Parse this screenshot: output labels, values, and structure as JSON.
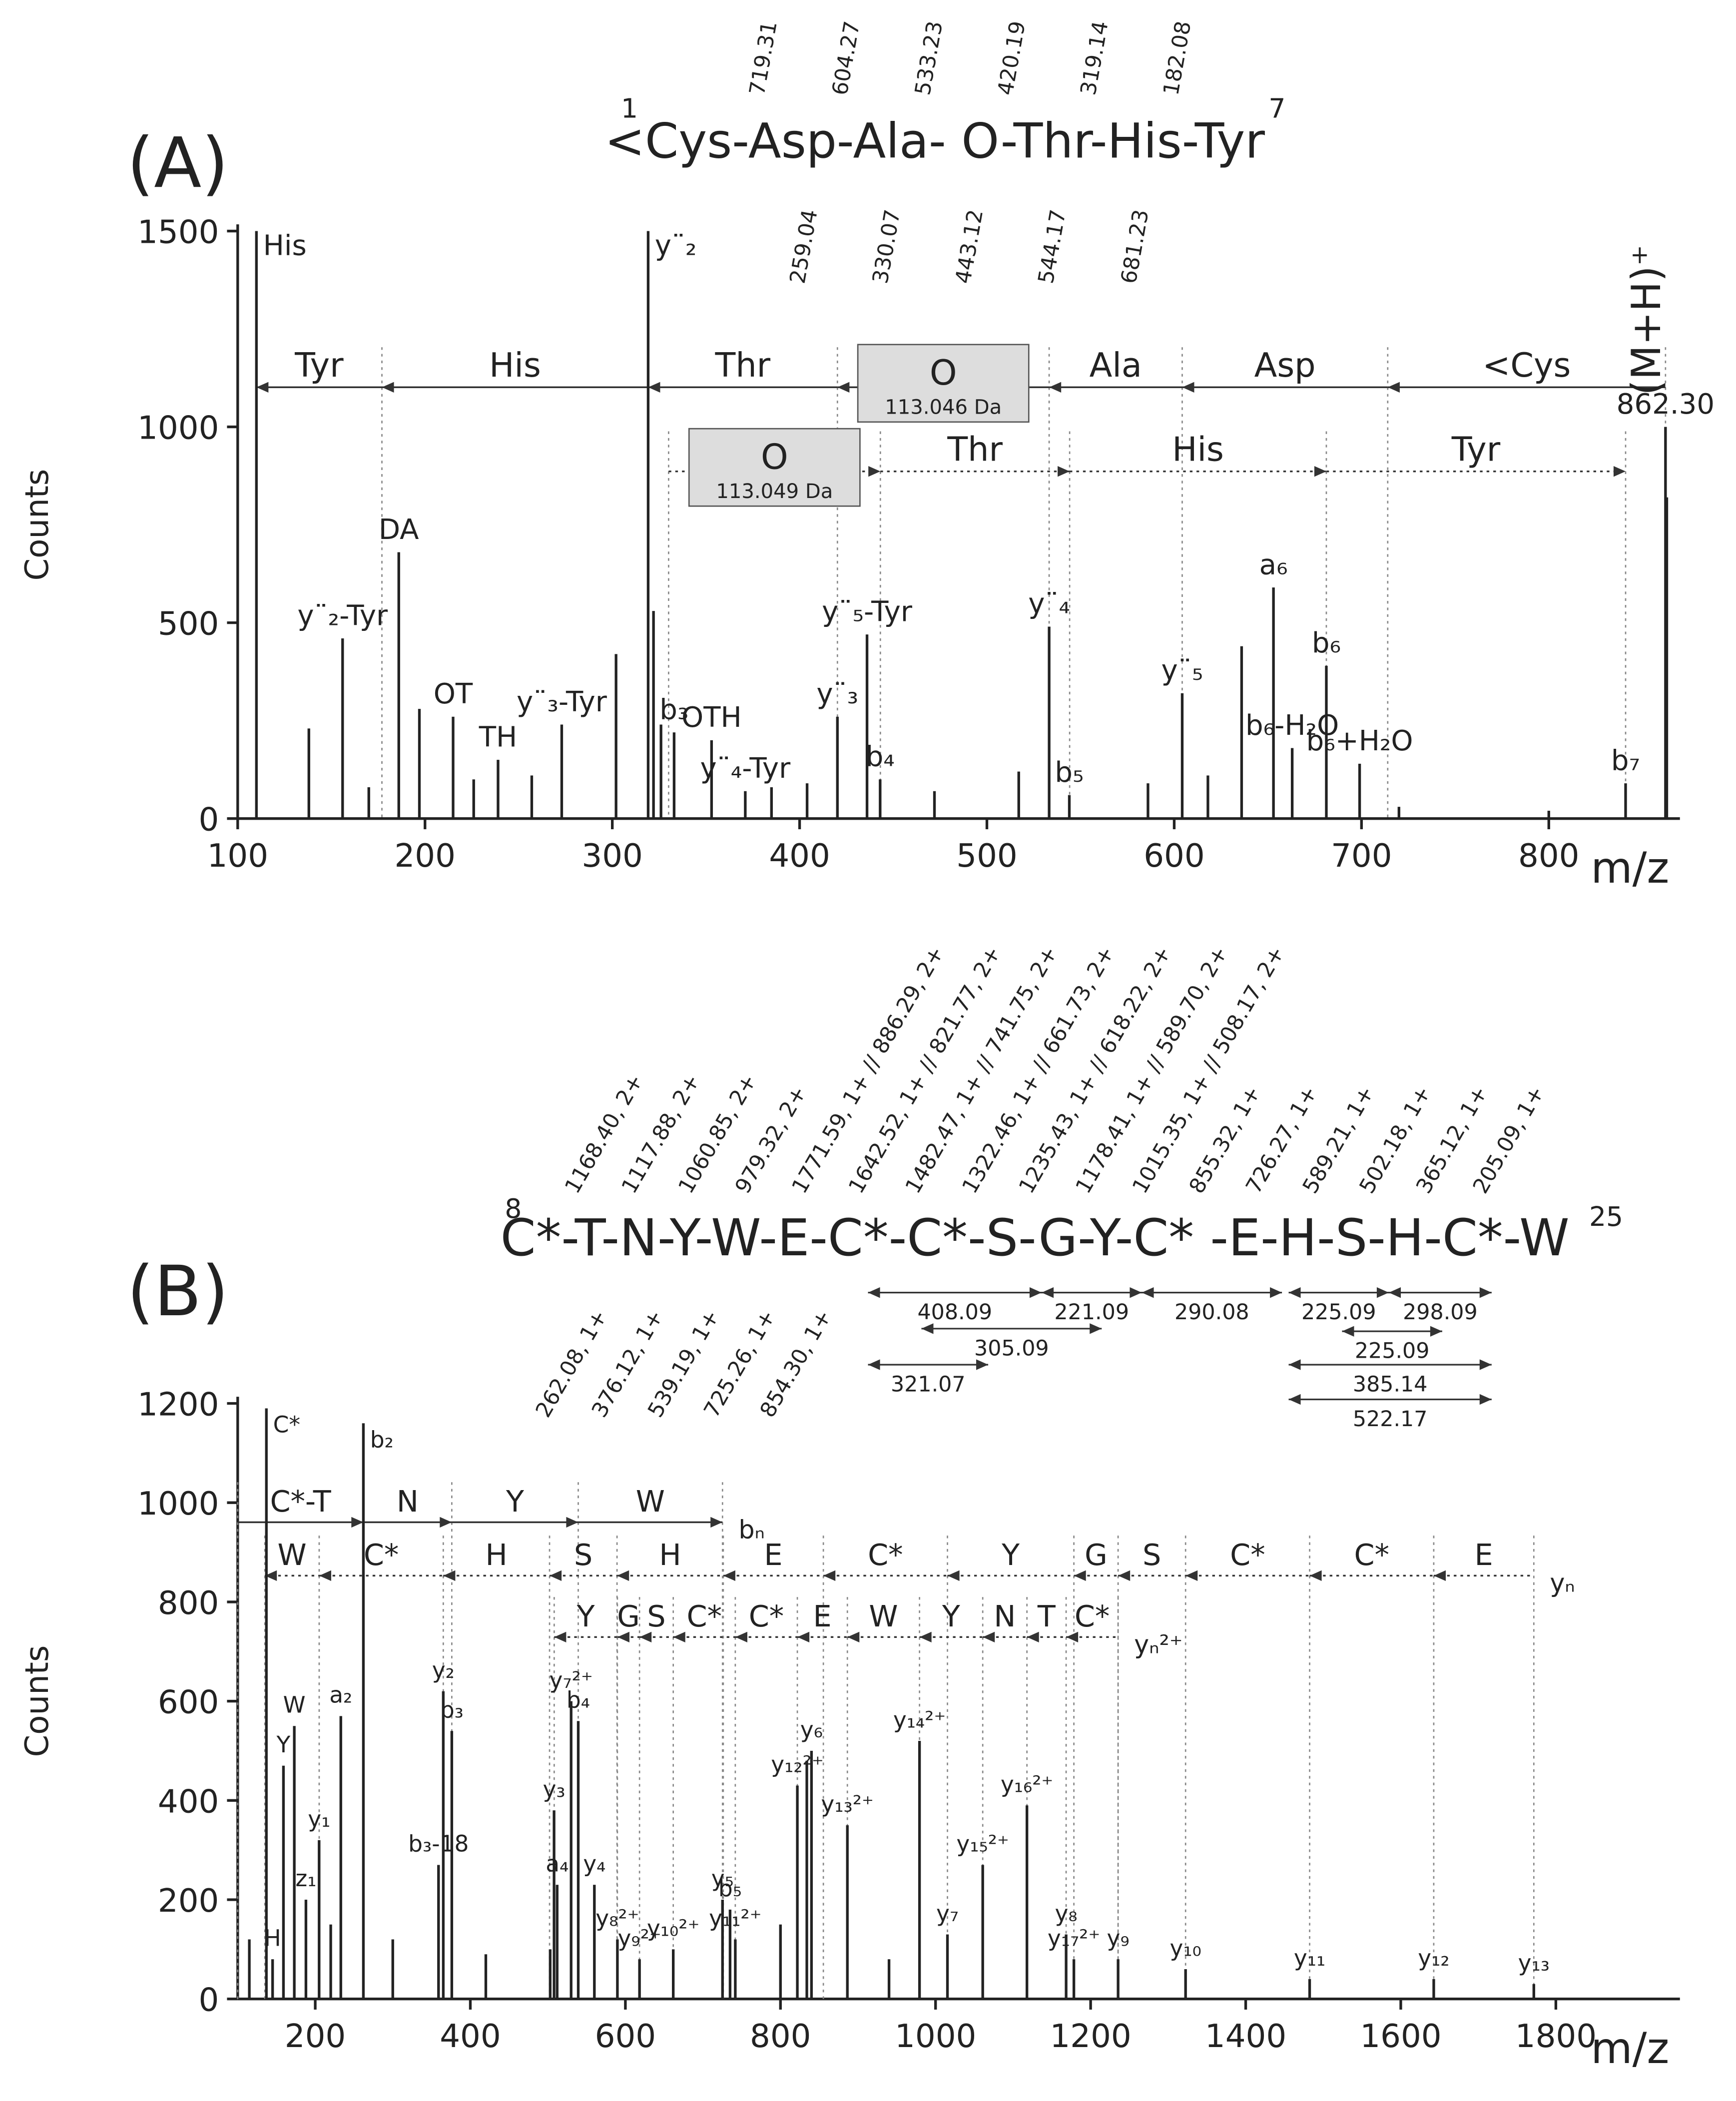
{
  "chart_data": [
    {
      "type": "bar",
      "panel_label": "(A)",
      "xlabel": "m/z",
      "ylabel": "Counts",
      "sequence": "<Cys-Asp-Ala- O-Thr-His-Tyr",
      "residue_numbers": [
        1,
        7
      ],
      "fragments_top": [
        "719.31",
        "604.27",
        "533.23",
        "420.19",
        "319.14",
        "182.08"
      ],
      "fragments_bottom": [
        "259.04",
        "330.07",
        "443.12",
        "544.17",
        "681.23"
      ],
      "precursor_label": "(M+H)⁺",
      "xlim": [
        100,
        870
      ],
      "xticks": [
        100,
        200,
        300,
        400,
        500,
        600,
        700,
        800
      ],
      "ylim": [
        0,
        1500
      ],
      "yticks": [
        0,
        500,
        1000,
        1500
      ],
      "color": "#222222",
      "x": [
        110,
        138,
        156,
        170,
        186,
        197,
        215,
        226,
        239,
        257,
        273,
        302,
        319.14,
        322,
        326,
        333,
        353,
        371,
        385,
        404,
        420.19,
        436,
        443,
        472,
        517,
        533.23,
        544,
        586,
        604.27,
        618,
        636,
        653,
        663,
        681.23,
        699,
        720,
        800,
        841,
        862.3,
        863
      ],
      "values": [
        1500,
        230,
        460,
        80,
        680,
        280,
        260,
        100,
        150,
        110,
        240,
        420,
        1500,
        530,
        240,
        220,
        200,
        70,
        80,
        90,
        260,
        470,
        100,
        70,
        120,
        490,
        60,
        90,
        320,
        110,
        440,
        590,
        180,
        390,
        140,
        30,
        20,
        90,
        1000,
        820
      ],
      "peak_labels": [
        "His",
        null,
        "y¨₂-Tyr",
        null,
        "DA",
        null,
        "OT",
        null,
        "TH",
        null,
        "y¨₃-Tyr",
        null,
        "y¨₂",
        null,
        null,
        "b₃",
        "OTH",
        "y¨₄-Tyr",
        null,
        null,
        "y¨₃",
        "y¨₅-Tyr",
        "b₄",
        null,
        null,
        "y¨₄",
        "b₅",
        null,
        "y¨₅",
        null,
        null,
        "a₆",
        "b₆-H₂O",
        "b₆",
        "b₆+H₂O",
        null,
        null,
        "b₇",
        "862.30",
        null
      ],
      "ladders": [
        {
          "direction": "left",
          "line_style": "solid",
          "labels": [
            "Tyr",
            "His",
            "Thr",
            "O",
            "Ala",
            "Asp",
            "<Cys"
          ],
          "edges": [
            110,
            177,
            319.14,
            420.19,
            533.23,
            604.27,
            714,
            862.3
          ],
          "notes": [
            null,
            null,
            null,
            "113.046 Da",
            null,
            null,
            null
          ]
        },
        {
          "direction": "right",
          "line_style": "dotted",
          "labels": [
            "O",
            "Thr",
            "His",
            "Tyr"
          ],
          "edges": [
            330.07,
            443.12,
            544.17,
            681.23,
            841
          ],
          "notes": [
            "113.049 Da",
            null,
            null,
            null
          ]
        }
      ]
    },
    {
      "type": "bar",
      "panel_label": "(B)",
      "xlabel": "m/z",
      "ylabel": "Counts",
      "sequence": "C*-T-N-Y-W-E-C*-C*-S-G-Y-C* -E-H-S-H-C*-W",
      "residue_numbers": [
        8,
        25
      ],
      "fragments_top": [
        "1168.40, 2+",
        "1117.88, 2+",
        "1060.85, 2+",
        "979.32, 2+",
        "1771.59, 1+ // 886.29, 2+",
        "1642.52, 1+ // 821.77, 2+",
        "1482.47, 1+ // 741.75, 2+",
        "1322.46, 1+ // 661.73, 2+",
        "1235.43, 1+ // 618.22, 2+",
        "1178.41, 1+ // 589.70, 2+",
        "1015.35, 1+ // 508.17, 2+",
        "855.32, 1+",
        "726.27, 1+",
        "589.21, 1+",
        "502.18, 1+",
        "365.12, 1+",
        "205.09, 1+"
      ],
      "fragments_bottom": [
        "262.08, 1+",
        "376.12, 1+",
        "539.19, 1+",
        "725.26, 1+",
        "854.30, 1+"
      ],
      "distances": [
        "408.09",
        "221.09",
        "305.09",
        "321.07",
        "290.08",
        "225.09",
        "298.09",
        "225.09",
        "385.14",
        "522.17"
      ],
      "xlim": [
        100,
        1960
      ],
      "xticks": [
        200,
        400,
        600,
        800,
        1000,
        1200,
        1400,
        1600,
        1800
      ],
      "ylim": [
        0,
        1200
      ],
      "yticks": [
        0,
        200,
        400,
        600,
        800,
        1000,
        1200
      ],
      "color": "#222222",
      "x": [
        115,
        137,
        145,
        159,
        173,
        188,
        205,
        220,
        233,
        262.08,
        300,
        359,
        365.12,
        376.12,
        420,
        503,
        508,
        512,
        530,
        539.19,
        560,
        589.7,
        618.22,
        661.73,
        725.26,
        735,
        741.75,
        800,
        821.77,
        834,
        840,
        886.29,
        940,
        979.32,
        1015.35,
        1060.85,
        1117.88,
        1168.4,
        1178.41,
        1235.43,
        1322.46,
        1482.47,
        1642.52,
        1771.59
      ],
      "values": [
        120,
        1190,
        80,
        470,
        550,
        200,
        320,
        150,
        570,
        1160,
        120,
        270,
        620,
        540,
        90,
        100,
        380,
        230,
        600,
        560,
        230,
        120,
        80,
        100,
        200,
        180,
        120,
        150,
        430,
        480,
        500,
        350,
        80,
        520,
        130,
        270,
        390,
        130,
        80,
        80,
        60,
        40,
        40,
        30
      ],
      "peak_labels": [
        null,
        "C*",
        "H",
        "Y",
        "W",
        "z₁",
        "y₁",
        null,
        "a₂",
        "b₂",
        null,
        "b₃-18",
        "y₂",
        "b₃",
        null,
        null,
        "y₃",
        "a₄",
        "y₇²⁺",
        "b₄",
        "y₄",
        "y₈²⁺",
        "y₉²⁺",
        "y₁₀²⁺",
        "y₅",
        "b₅",
        "y₁₁²⁺",
        null,
        "y₁₂²⁺",
        null,
        "y₆",
        "y₁₃²⁺",
        null,
        "y₁₄²⁺",
        "y₇",
        "y₁₅²⁺",
        "y₁₆²⁺",
        "y₈",
        "y₁₇²⁺",
        "y₉",
        "y₁₀",
        "y₁₁",
        "y₁₂",
        "y₁₃"
      ],
      "ladders": [
        {
          "direction": "right",
          "line_style": "solid",
          "labels": [
            "C*-T",
            "N",
            "Y",
            "W"
          ],
          "edges": [
            100,
            262.08,
            376.12,
            539.19,
            725.26
          ],
          "end_label": "bₙ"
        },
        {
          "direction": "left",
          "line_style": "dotted",
          "labels": [
            "W",
            "C*",
            "H",
            "S",
            "H",
            "E",
            "C*",
            "Y",
            "G",
            "S",
            "C*",
            "C*",
            "E"
          ],
          "edges": [
            135,
            205.09,
            365.12,
            502.18,
            589.21,
            726.27,
            855.32,
            1015.35,
            1178.41,
            1235.43,
            1322.46,
            1482.47,
            1642.52,
            1771.59
          ],
          "end_label": "yₙ"
        },
        {
          "direction": "left",
          "line_style": "dotted",
          "labels": [
            "Y",
            "G",
            "S",
            "C*",
            "C*",
            "E",
            "W",
            "Y",
            "N",
            "T",
            "C*"
          ],
          "edges": [
            508.17,
            589.7,
            618.22,
            661.73,
            741.75,
            821.77,
            886.29,
            979.32,
            1060.85,
            1117.88,
            1168.4,
            1235.43
          ],
          "end_label": "yₙ²⁺"
        }
      ]
    }
  ]
}
